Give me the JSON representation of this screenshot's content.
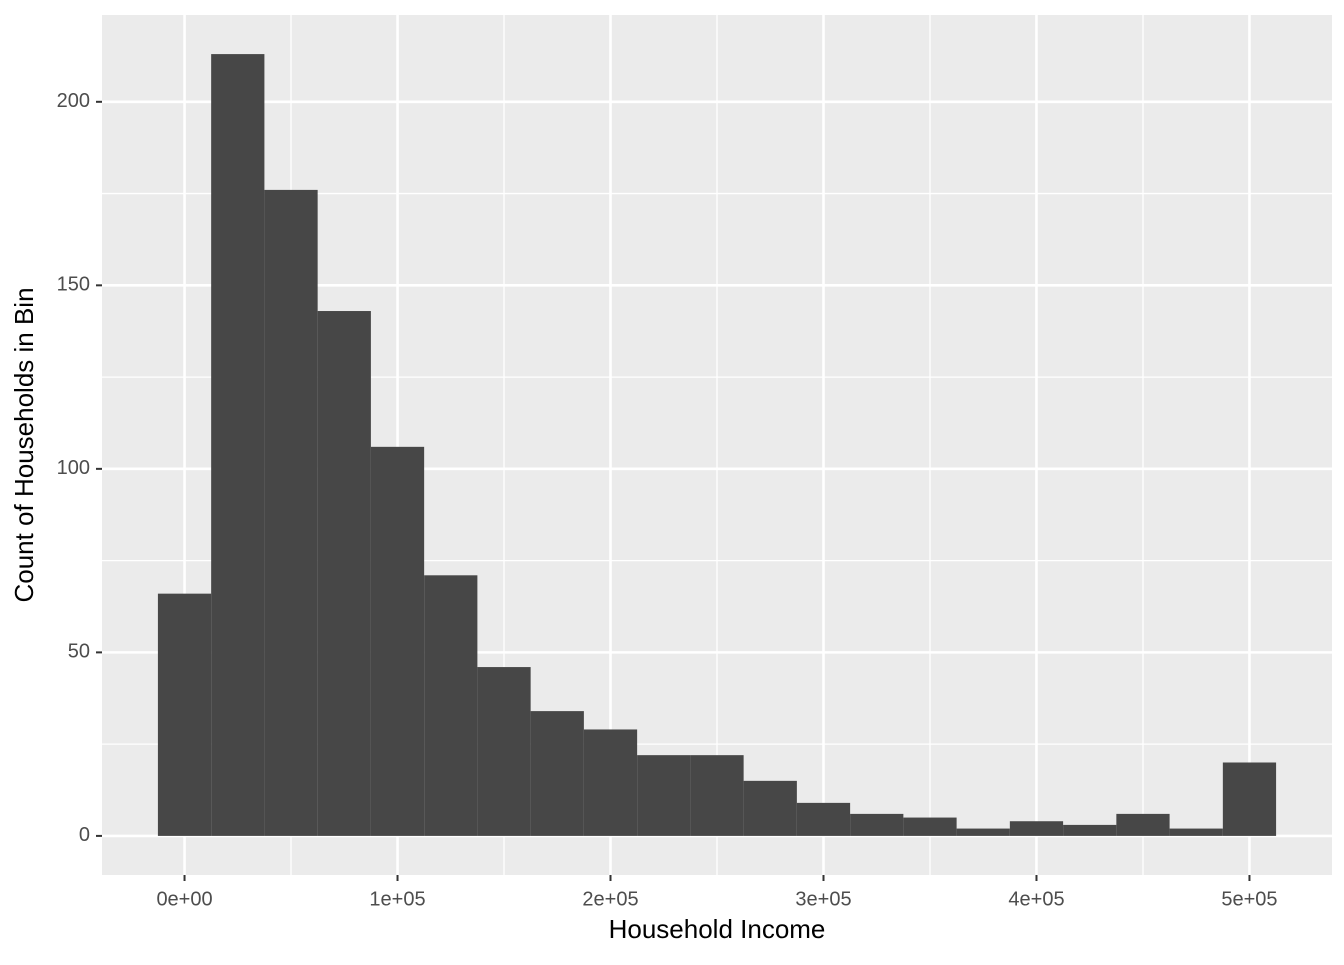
{
  "chart_data": {
    "type": "histogram",
    "x_label": "Household Income",
    "y_label": "Count of Households in Bin",
    "bins": [
      -12500,
      12500,
      37500,
      62500,
      87500,
      112500,
      137500,
      162500,
      187500,
      212500,
      237500,
      262500,
      287500,
      312500,
      337500,
      362500,
      387500,
      412500,
      437500,
      462500,
      487500,
      512500
    ],
    "counts": [
      66,
      213,
      176,
      143,
      106,
      71,
      46,
      34,
      29,
      22,
      22,
      15,
      9,
      6,
      5,
      2,
      4,
      3,
      6,
      2,
      20
    ],
    "color": "#474747",
    "xlim": [
      -38750,
      538750
    ],
    "ylim": [
      -10.65,
      223.65
    ],
    "xticks": [
      {
        "value": 0,
        "label": "0e+00"
      },
      {
        "value": 100000,
        "label": "1e+05"
      },
      {
        "value": 200000,
        "label": "2e+05"
      },
      {
        "value": 300000,
        "label": "3e+05"
      },
      {
        "value": 400000,
        "label": "4e+05"
      },
      {
        "value": 500000,
        "label": "5e+05"
      }
    ],
    "yticks": [
      0,
      50,
      100,
      150,
      200
    ],
    "xminor": [
      50000,
      150000,
      250000,
      350000,
      450000
    ],
    "yminor": [
      25,
      75,
      125,
      175
    ],
    "grid": true
  }
}
